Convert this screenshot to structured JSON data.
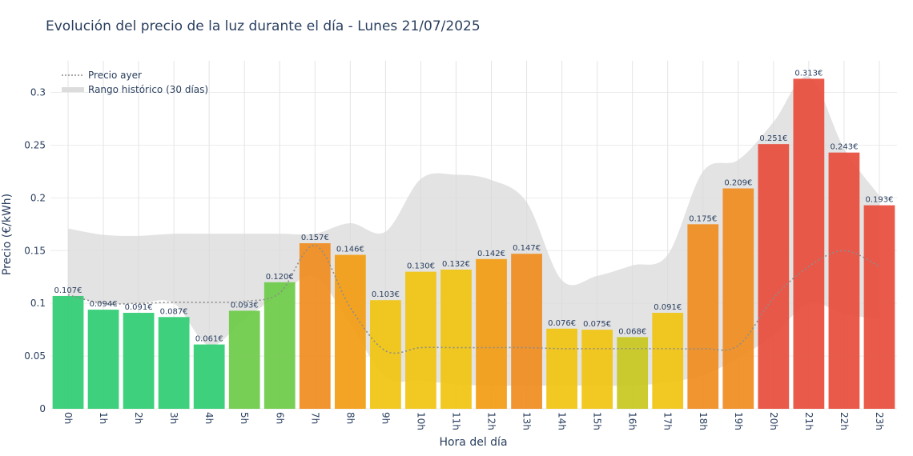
{
  "chart_data": {
    "type": "bar",
    "title": "Evolución del precio de la luz durante el día - Lunes 21/07/2025",
    "xlabel": "Hora del día",
    "ylabel": "Precio (€/kWh)",
    "ylim": [
      0,
      0.33
    ],
    "yticks": [
      0,
      0.05,
      0.1,
      0.15,
      0.2,
      0.25,
      0.3
    ],
    "ytick_labels": [
      "0",
      "0.05",
      "0.1",
      "0.15",
      "0.2",
      "0.25",
      "0.3"
    ],
    "categories": [
      "0h",
      "1h",
      "2h",
      "3h",
      "4h",
      "5h",
      "6h",
      "7h",
      "8h",
      "9h",
      "10h",
      "11h",
      "12h",
      "13h",
      "14h",
      "15h",
      "16h",
      "17h",
      "18h",
      "19h",
      "20h",
      "21h",
      "22h",
      "23h"
    ],
    "values": [
      0.107,
      0.094,
      0.091,
      0.087,
      0.061,
      0.093,
      0.12,
      0.157,
      0.146,
      0.103,
      0.13,
      0.132,
      0.142,
      0.147,
      0.076,
      0.075,
      0.068,
      0.091,
      0.175,
      0.209,
      0.251,
      0.313,
      0.243,
      0.193
    ],
    "value_labels": [
      "0.107€",
      "0.094€",
      "0.091€",
      "0.087€",
      "0.061€",
      "0.093€",
      "0.120€",
      "0.157€",
      "0.146€",
      "0.103€",
      "0.130€",
      "0.132€",
      "0.142€",
      "0.147€",
      "0.076€",
      "0.075€",
      "0.068€",
      "0.091€",
      "0.175€",
      "0.209€",
      "0.251€",
      "0.313€",
      "0.243€",
      "0.193€"
    ],
    "bar_colors": [
      "#2ecc71",
      "#2ecc71",
      "#2ecc71",
      "#2ecc71",
      "#2ecc71",
      "#6ccb48",
      "#6ccb48",
      "#f08c1e",
      "#f39c12",
      "#f1c40f",
      "#f1c40f",
      "#f1c40f",
      "#f39c12",
      "#f08c1e",
      "#f1c40f",
      "#f1c40f",
      "#c8c820",
      "#f1c40f",
      "#f08c1e",
      "#f08c1e",
      "#e74c3c",
      "#e74c3c",
      "#e74c3c",
      "#e74c3c"
    ],
    "series": [
      {
        "name": "Precio ayer",
        "type": "line",
        "style": "dotted",
        "color": "#8c8c8c",
        "values": [
          0.108,
          0.1,
          0.1,
          0.101,
          0.101,
          0.102,
          0.11,
          0.155,
          0.096,
          0.055,
          0.058,
          0.058,
          0.058,
          0.058,
          0.057,
          0.057,
          0.057,
          0.057,
          0.057,
          0.06,
          0.105,
          0.135,
          0.15,
          0.135
        ]
      },
      {
        "name": "Rango histórico (30 días)",
        "type": "band",
        "color": "#d9d9d9",
        "upper": [
          0.171,
          0.165,
          0.164,
          0.166,
          0.166,
          0.166,
          0.166,
          0.166,
          0.176,
          0.168,
          0.218,
          0.222,
          0.217,
          0.196,
          0.122,
          0.126,
          0.136,
          0.146,
          0.225,
          0.236,
          0.272,
          0.315,
          0.247,
          0.202
        ],
        "lower": [
          0.108,
          0.1,
          0.1,
          0.1,
          0.06,
          0.085,
          0.108,
          0.125,
          0.08,
          0.03,
          0.027,
          0.023,
          0.022,
          0.022,
          0.022,
          0.022,
          0.022,
          0.025,
          0.032,
          0.048,
          0.07,
          0.1,
          0.09,
          0.085
        ]
      }
    ],
    "legend": {
      "position": "top-left",
      "entries": [
        "Precio ayer",
        "Rango histórico (30 días)"
      ]
    },
    "grid": true
  }
}
